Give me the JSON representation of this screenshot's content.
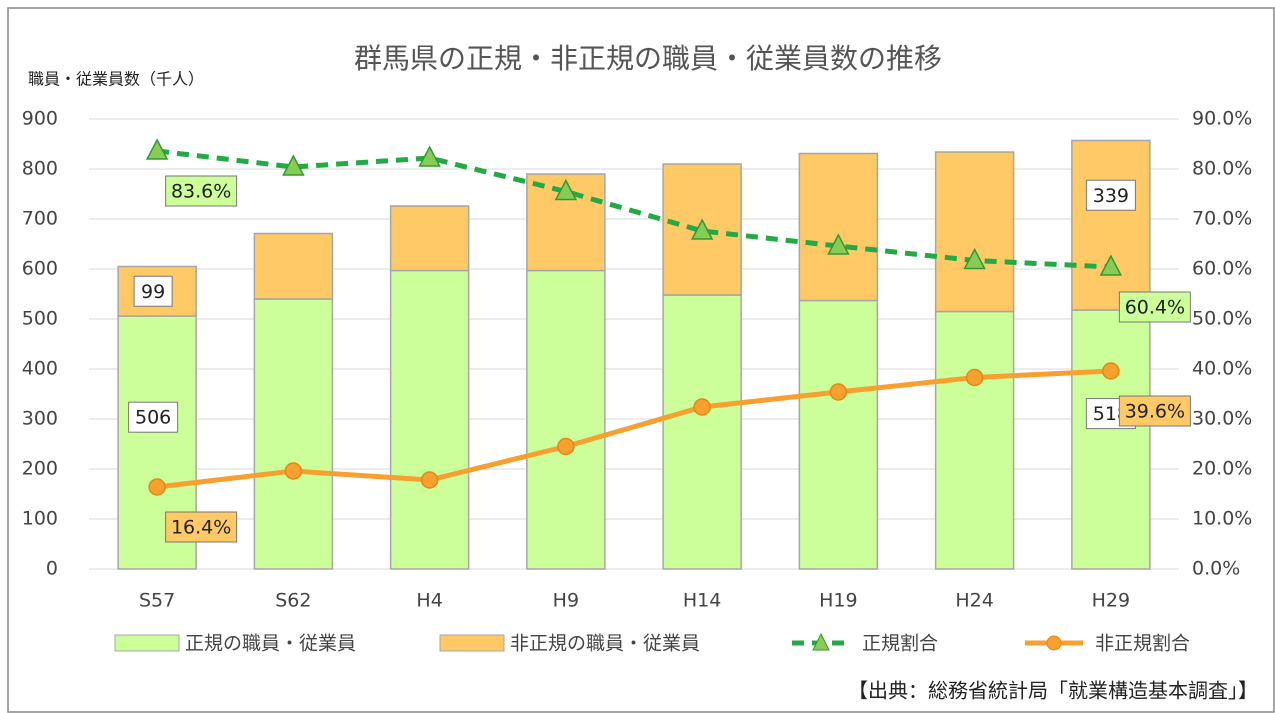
{
  "chart_data": {
    "type": "bar_line",
    "title": "群馬県の正規・非正規の職員・従業員数の推移",
    "y_label": "職員・従業員数（千人）",
    "source": "【出典：総務省統計局「就業構造基本調査」】",
    "categories": [
      "S57",
      "S62",
      "H4",
      "H9",
      "H14",
      "H19",
      "H24",
      "H29"
    ],
    "series": [
      {
        "name": "正規の職員・従業員",
        "kind": "bar",
        "color": "#ccff99",
        "values": [
          506,
          540,
          597,
          597,
          548,
          537,
          515,
          518
        ],
        "value_labels": [
          "506",
          null,
          null,
          null,
          null,
          null,
          null,
          "518"
        ]
      },
      {
        "name": "非正規の職員・従業員",
        "kind": "bar",
        "color": "#ffc966",
        "values": [
          99,
          131,
          129,
          193,
          262,
          294,
          319,
          339
        ],
        "value_labels": [
          "99",
          null,
          null,
          null,
          null,
          null,
          null,
          "339"
        ]
      },
      {
        "name": "正規割合",
        "kind": "line",
        "axis": "y2",
        "color": "#22aa44",
        "marker_color": "#88cc55",
        "dashed": true,
        "values": [
          83.6,
          80.4,
          82.2,
          75.5,
          67.6,
          64.6,
          61.7,
          60.4
        ],
        "value_labels": [
          "83.6%",
          null,
          null,
          null,
          null,
          null,
          null,
          "60.4%"
        ]
      },
      {
        "name": "非正規割合",
        "kind": "line",
        "axis": "y2",
        "color": "#f7a030",
        "marker_color": "#f7a030",
        "dashed": false,
        "values": [
          16.4,
          19.6,
          17.8,
          24.5,
          32.4,
          35.4,
          38.3,
          39.6
        ],
        "value_labels": [
          "16.4%",
          null,
          null,
          null,
          null,
          null,
          null,
          "39.6%"
        ]
      }
    ],
    "ylim": [
      0,
      900
    ],
    "yticks": [
      0,
      100,
      200,
      300,
      400,
      500,
      600,
      700,
      800,
      900
    ],
    "y2lim": [
      0,
      90
    ],
    "y2ticks": [
      {
        "value": 0,
        "label": "0.0%"
      },
      {
        "value": 10,
        "label": "10.0%"
      },
      {
        "value": 20,
        "label": "20.0%"
      },
      {
        "value": 30,
        "label": "30.0%"
      },
      {
        "value": 40,
        "label": "40.0%"
      },
      {
        "value": 50,
        "label": "50.0%"
      },
      {
        "value": 60,
        "label": "60.0%"
      },
      {
        "value": 70,
        "label": "70.0%"
      },
      {
        "value": 80,
        "label": "80.0%"
      },
      {
        "value": 90,
        "label": "90.0%"
      }
    ],
    "grid": true,
    "legend": "bottom"
  }
}
